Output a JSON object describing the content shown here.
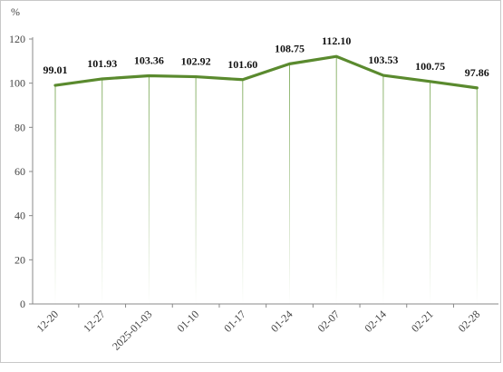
{
  "chart_data": {
    "type": "line",
    "title": "",
    "xlabel": "",
    "ylabel": "%",
    "ylim": [
      0,
      120
    ],
    "yticks": [
      0,
      20,
      40,
      60,
      80,
      100,
      120
    ],
    "grid": false,
    "color": "#5a8a2e",
    "categories": [
      "12-20",
      "12-27",
      "2025-01-03",
      "01-10",
      "01-17",
      "01-24",
      "02-07",
      "02-14",
      "02-21",
      "02-28"
    ],
    "series": [
      {
        "values": [
          99.01,
          101.93,
          103.36,
          102.92,
          101.6,
          108.75,
          112.1,
          103.53,
          100.75,
          97.86
        ]
      }
    ],
    "data_labels": [
      "99.01",
      "101.93",
      "103.36",
      "102.92",
      "101.60",
      "108.75",
      "112.10",
      "103.53",
      "100.75",
      "97.86"
    ]
  }
}
